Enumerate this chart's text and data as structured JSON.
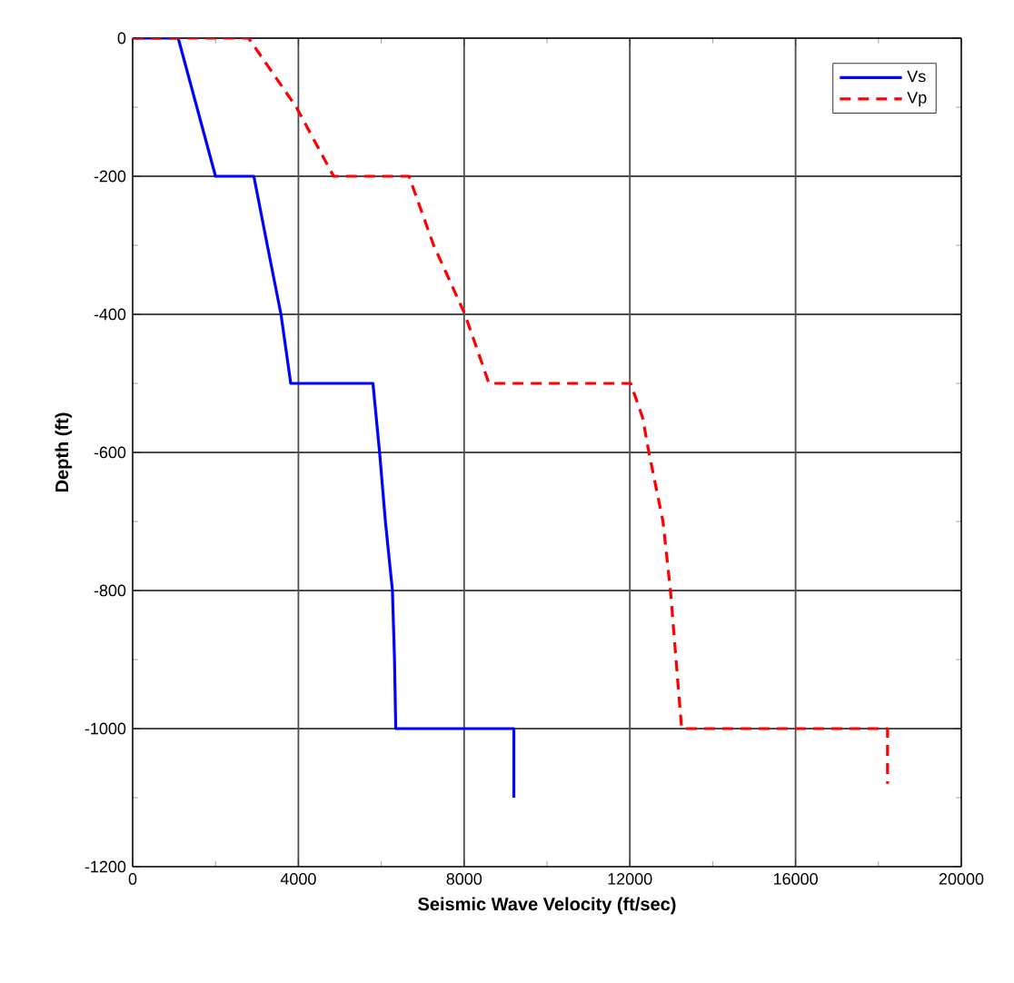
{
  "chart_data": {
    "type": "line",
    "xlabel": "Seismic Wave Velocity (ft/sec)",
    "ylabel": "Depth (ft)",
    "xlim": [
      0,
      20000
    ],
    "xticks": [
      0,
      4000,
      8000,
      12000,
      16000,
      20000
    ],
    "ylim": [
      -1200,
      0
    ],
    "yticks": [
      -1200,
      -1000,
      -800,
      -600,
      -400,
      -200,
      0
    ],
    "grid": true,
    "legend": "top right",
    "series": [
      {
        "name": "Vs",
        "color": "#0000ff",
        "line_style": "solid",
        "x": [
          0,
          1100,
          2000,
          2925,
          3250,
          3580,
          3816,
          5800,
          5960,
          6100,
          6270,
          6320,
          6350,
          9200,
          9200
        ],
        "values": [
          0,
          0,
          -200,
          -200,
          -300,
          -400,
          -500,
          -500,
          -600,
          -700,
          -800,
          -900,
          -1000,
          -1000,
          -1100
        ]
      },
      {
        "name": "Vp",
        "color": "#ff0000",
        "line_style": "dashed",
        "x": [
          0,
          2800,
          3950,
          4850,
          6670,
          7265,
          8020,
          8600,
          12020,
          12310,
          12460,
          12800,
          12980,
          13250,
          18220,
          18220
        ],
        "values": [
          0,
          0,
          -100,
          -200,
          -200,
          -300,
          -400,
          -500,
          -500,
          -550,
          -600,
          -700,
          -800,
          -1000,
          -1000,
          -1080
        ]
      }
    ]
  }
}
